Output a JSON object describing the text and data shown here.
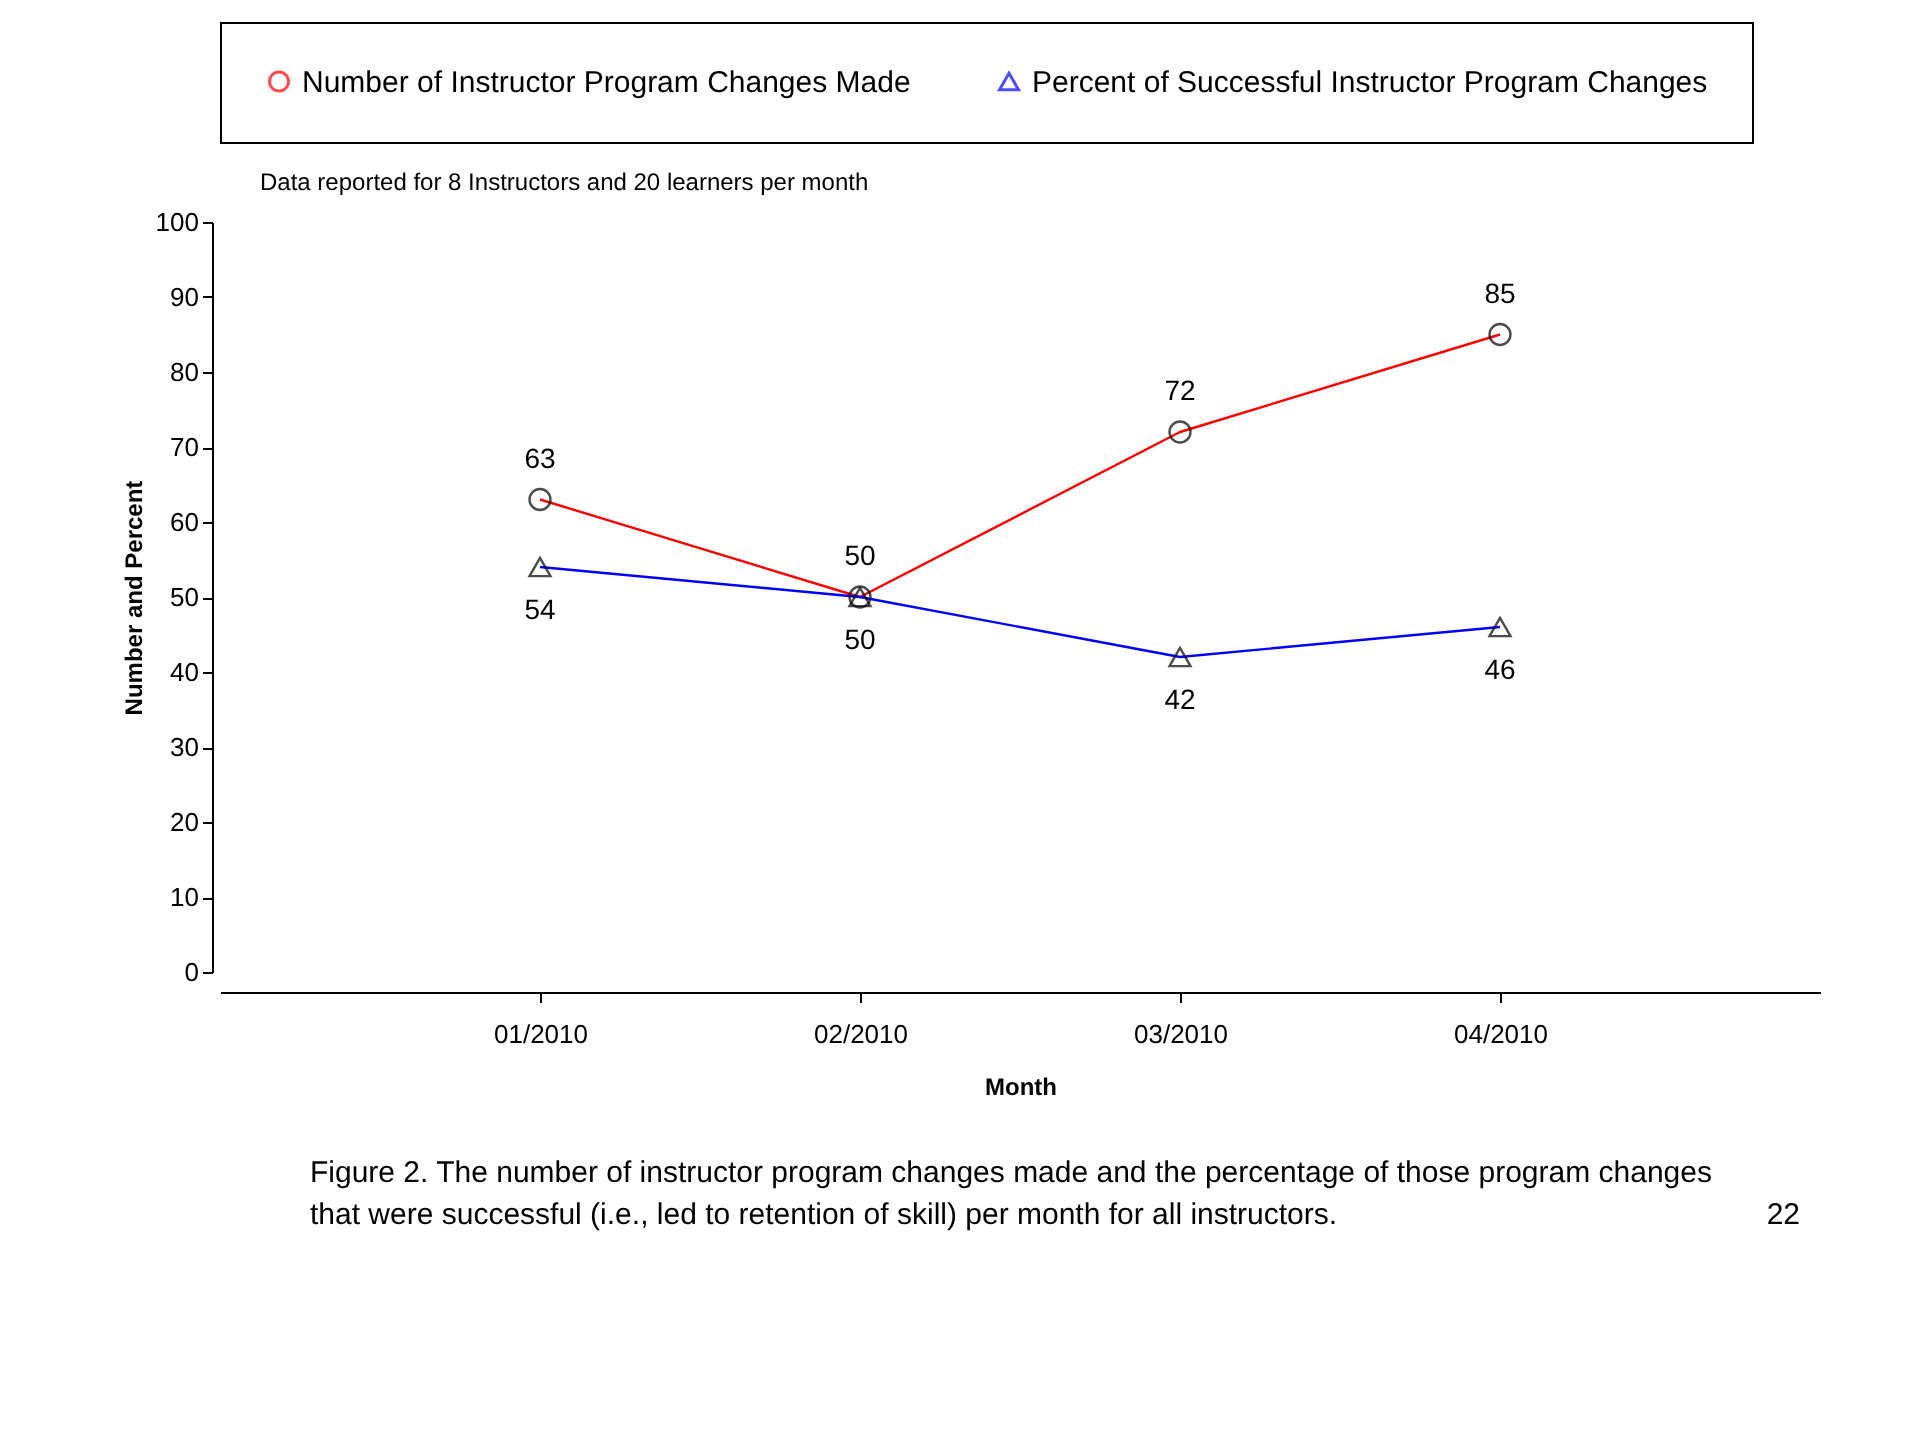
{
  "chart_data": {
    "type": "line",
    "title": "Data reported for 8 Instructors and 20 learners per month",
    "xlabel": "Month",
    "ylabel": "Number and Percent",
    "categories": [
      "01/2010",
      "02/2010",
      "03/2010",
      "04/2010"
    ],
    "series": [
      {
        "name": "Number of Instructor Program Changes Made",
        "color": "#ff0000",
        "marker": "circle",
        "values": [
          63,
          50,
          72,
          85
        ]
      },
      {
        "name": "Percent of Successful Instructor Program Changes",
        "color": "#0000ff",
        "marker": "triangle",
        "values": [
          54,
          50,
          42,
          46
        ]
      }
    ],
    "ylim": [
      0,
      100
    ],
    "yticks": [
      0,
      10,
      20,
      30,
      40,
      50,
      60,
      70,
      80,
      90,
      100
    ],
    "grid": false,
    "legend": "top",
    "data_labels": true,
    "annotations": [
      "Figure 2. The number of instructor program changes made and the percentage of those program changes",
      "that were successful (i.e., led to retention of skill) per month for all instructors.",
      "22"
    ]
  }
}
